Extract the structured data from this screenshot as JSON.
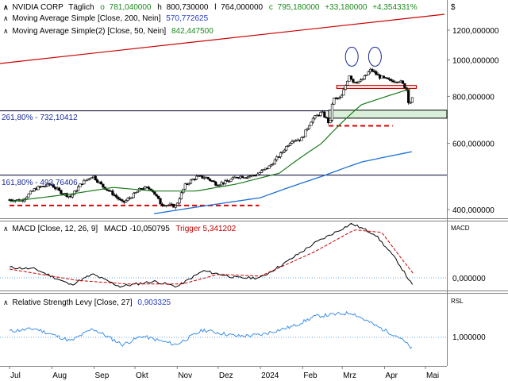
{
  "header": {
    "symbol": "NVIDIA CORP",
    "interval": "Täglich",
    "open_label": "o",
    "open": "781,040000",
    "high_label": "h",
    "high": "800,730000",
    "low_label": "l",
    "low": "764,000000",
    "close_label": "c",
    "close": "795,180000",
    "change": "+33,180000",
    "change_pct": "+4,354331%",
    "currency": "$"
  },
  "legend": {
    "ma200_text": "Moving Average Simple [Close, 200, Nein]",
    "ma200_value": "570,772625",
    "ma50_text": "Moving Average Simple(2) [Close, 50, Nein]",
    "ma50_value": "842,447500",
    "fib1": "261,80% - 732,10412",
    "fib2": "161,80% - 493,76406"
  },
  "macd_panel": {
    "label": "MACD [Close, 12, 26, 9]",
    "value": "MACD -10,050795",
    "trigger": "Trigger 5,341202",
    "axis_name": "MACD",
    "zero_tick": "0,000000"
  },
  "rsl_panel": {
    "label": "Relative Strength Levy [Close, 27]",
    "value": "0,903325",
    "axis_name": "RSL",
    "tick": "1,000000"
  },
  "colors": {
    "up": "#008000",
    "down": "#c00000",
    "ma200": "#1a6fd6",
    "ma50": "#2a8a2a",
    "trend": "#cc0000",
    "rsl": "#3d8fe6",
    "fib": "#000080",
    "text_blue": "#2a3fc8",
    "text_green": "#1a8a1a"
  },
  "chart_data": {
    "type": "candlestick",
    "title": "NVIDIA CORP",
    "x_ticks": [
      "Jul",
      "Aug",
      "Sep",
      "Okt",
      "Nov",
      "Dez",
      "2024",
      "Feb",
      "Mrz",
      "Apr",
      "Mai"
    ],
    "y_ticks": [
      "1200,000000",
      "1000,000000",
      "800,000000",
      "600,000000",
      "400,000000"
    ],
    "y_tick_values": [
      1200,
      1000,
      800,
      600,
      400
    ],
    "log_scale": true,
    "price_points": [
      [
        "2023-07-01",
        425
      ],
      [
        "2023-07-10",
        423
      ],
      [
        "2023-07-20",
        455
      ],
      [
        "2023-07-31",
        467
      ],
      [
        "2023-08-07",
        446
      ],
      [
        "2023-08-15",
        432
      ],
      [
        "2023-08-23",
        471
      ],
      [
        "2023-08-31",
        492
      ],
      [
        "2023-09-07",
        462
      ],
      [
        "2023-09-15",
        440
      ],
      [
        "2023-09-22",
        416
      ],
      [
        "2023-09-29",
        435
      ],
      [
        "2023-10-06",
        457
      ],
      [
        "2023-10-13",
        454
      ],
      [
        "2023-10-20",
        414
      ],
      [
        "2023-10-31",
        408
      ],
      [
        "2023-11-07",
        466
      ],
      [
        "2023-11-15",
        488
      ],
      [
        "2023-11-22",
        487
      ],
      [
        "2023-11-30",
        467
      ],
      [
        "2023-12-08",
        475
      ],
      [
        "2023-12-15",
        490
      ],
      [
        "2023-12-22",
        490
      ],
      [
        "2023-12-29",
        495
      ],
      [
        "2024-01-08",
        522
      ],
      [
        "2024-01-16",
        563
      ],
      [
        "2024-01-24",
        613
      ],
      [
        "2024-01-31",
        615
      ],
      [
        "2024-02-08",
        696
      ],
      [
        "2024-02-15",
        726
      ],
      [
        "2024-02-21",
        674
      ],
      [
        "2024-02-23",
        788
      ],
      [
        "2024-02-29",
        791
      ],
      [
        "2024-03-07",
        926
      ],
      [
        "2024-03-08",
        875
      ],
      [
        "2024-03-15",
        879
      ],
      [
        "2024-03-22",
        943
      ],
      [
        "2024-03-28",
        903
      ],
      [
        "2024-04-05",
        880
      ],
      [
        "2024-04-12",
        881
      ],
      [
        "2024-04-17",
        840
      ],
      [
        "2024-04-19",
        762
      ],
      [
        "2024-04-22",
        795
      ]
    ],
    "ma200": [
      [
        "2023-10-15",
        390
      ],
      [
        "2024-01-01",
        430
      ],
      [
        "2024-02-15",
        490
      ],
      [
        "2024-03-15",
        535
      ],
      [
        "2024-04-22",
        571
      ]
    ],
    "ma50": [
      [
        "2023-07-01",
        420
      ],
      [
        "2023-08-15",
        440
      ],
      [
        "2023-09-15",
        458
      ],
      [
        "2023-10-15",
        448
      ],
      [
        "2023-11-15",
        448
      ],
      [
        "2023-12-15",
        468
      ],
      [
        "2024-01-15",
        500
      ],
      [
        "2024-02-15",
        600
      ],
      [
        "2024-03-15",
        760
      ],
      [
        "2024-04-22",
        842
      ]
    ],
    "levels": [
      {
        "label": "261,80% - 732,10412",
        "value": 732.1
      },
      {
        "label": "161,80% - 493,76406",
        "value": 493.76
      }
    ],
    "support_lines": [
      {
        "from": "2023-07-01",
        "to": "2023-12-31",
        "value": 410
      },
      {
        "from": "2024-02-20",
        "to": "2024-04-07",
        "value": 668
      }
    ],
    "resistance_band": {
      "from": "2024-02-26",
      "to": "2024-04-22",
      "low": 840,
      "high": 855
    },
    "macd": [
      [
        "2023-07-01",
        12
      ],
      [
        "2023-07-20",
        10
      ],
      [
        "2023-08-15",
        -8
      ],
      [
        "2023-08-31",
        4
      ],
      [
        "2023-09-20",
        -10
      ],
      [
        "2023-10-15",
        -4
      ],
      [
        "2023-11-01",
        -10
      ],
      [
        "2023-11-20",
        8
      ],
      [
        "2023-12-15",
        0
      ],
      [
        "2024-01-01",
        0
      ],
      [
        "2024-01-20",
        18
      ],
      [
        "2024-02-10",
        40
      ],
      [
        "2024-03-08",
        62
      ],
      [
        "2024-03-25",
        50
      ],
      [
        "2024-04-10",
        20
      ],
      [
        "2024-04-22",
        -10
      ]
    ],
    "macd_trigger": [
      [
        "2023-07-01",
        10
      ],
      [
        "2023-08-20",
        -3
      ],
      [
        "2023-09-25",
        -7
      ],
      [
        "2023-11-05",
        -7
      ],
      [
        "2023-12-01",
        4
      ],
      [
        "2024-01-01",
        2
      ],
      [
        "2024-02-10",
        30
      ],
      [
        "2024-03-10",
        55
      ],
      [
        "2024-03-30",
        52
      ],
      [
        "2024-04-12",
        25
      ],
      [
        "2024-04-22",
        5
      ]
    ],
    "rsl": [
      [
        "2023-07-01",
        1.05
      ],
      [
        "2023-07-20",
        1.07
      ],
      [
        "2023-08-15",
        0.97
      ],
      [
        "2023-08-31",
        1.07
      ],
      [
        "2023-09-22",
        0.94
      ],
      [
        "2023-10-06",
        1.01
      ],
      [
        "2023-10-31",
        0.94
      ],
      [
        "2023-11-20",
        1.06
      ],
      [
        "2023-12-15",
        1.01
      ],
      [
        "2024-01-01",
        1.02
      ],
      [
        "2024-01-25",
        1.09
      ],
      [
        "2024-02-10",
        1.17
      ],
      [
        "2024-03-08",
        1.2
      ],
      [
        "2024-03-28",
        1.08
      ],
      [
        "2024-04-12",
        1.0
      ],
      [
        "2024-04-22",
        0.9
      ]
    ]
  }
}
